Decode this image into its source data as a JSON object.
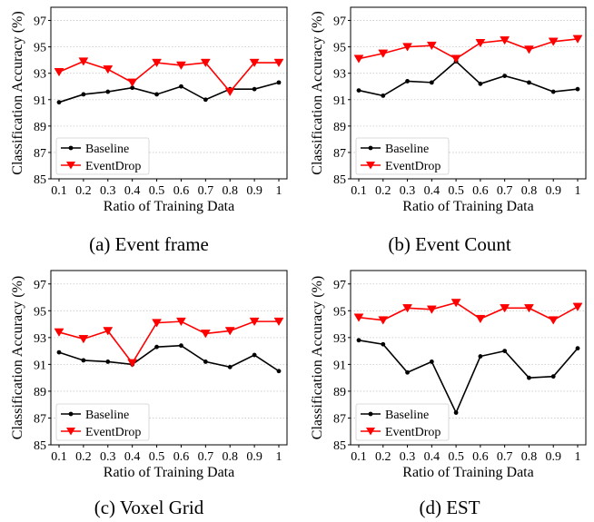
{
  "chart_data": [
    {
      "type": "line",
      "caption": "(a) Event frame",
      "xlabel": "Ratio of Training Data",
      "ylabel": "Classification Accuracy (%)",
      "categories": [
        "0.1",
        "0.2",
        "0.3",
        "0.4",
        "0.5",
        "0.6",
        "0.7",
        "0.8",
        "0.9",
        "1"
      ],
      "yticks": [
        85,
        87,
        89,
        91,
        93,
        95,
        97
      ],
      "ylim": [
        85,
        98
      ],
      "grid": "horizontal dotted",
      "legend_position": "lower-left",
      "series": [
        {
          "name": "Baseline",
          "color": "#000000",
          "marker": "dot",
          "values": [
            90.8,
            91.4,
            91.6,
            91.9,
            91.4,
            92.0,
            91.0,
            91.8,
            91.8,
            92.3
          ]
        },
        {
          "name": "EventDrop",
          "color": "#ff0000",
          "marker": "triangle-down",
          "values": [
            93.1,
            93.9,
            93.3,
            92.3,
            93.8,
            93.6,
            93.8,
            91.6,
            93.8,
            93.8
          ]
        }
      ]
    },
    {
      "type": "line",
      "caption": "(b) Event Count",
      "xlabel": "Ratio of Training Data",
      "ylabel": "Classification Accuracy (%)",
      "categories": [
        "0.1",
        "0.2",
        "0.3",
        "0.4",
        "0.5",
        "0.6",
        "0.7",
        "0.8",
        "0.9",
        "1"
      ],
      "yticks": [
        85,
        87,
        89,
        91,
        93,
        95,
        97
      ],
      "ylim": [
        85,
        98
      ],
      "grid": "horizontal dotted",
      "legend_position": "lower-left",
      "series": [
        {
          "name": "Baseline",
          "color": "#000000",
          "marker": "dot",
          "values": [
            91.7,
            91.3,
            92.4,
            92.3,
            93.9,
            92.2,
            92.8,
            92.3,
            91.6,
            91.8
          ]
        },
        {
          "name": "EventDrop",
          "color": "#ff0000",
          "marker": "triangle-down",
          "values": [
            94.1,
            94.5,
            95.0,
            95.1,
            94.1,
            95.3,
            95.5,
            94.8,
            95.4,
            95.6
          ]
        }
      ]
    },
    {
      "type": "line",
      "caption": "(c) Voxel Grid",
      "xlabel": "Ratio of Training Data",
      "ylabel": "Classification Accuracy (%)",
      "categories": [
        "0.1",
        "0.2",
        "0.3",
        "0.4",
        "0.5",
        "0.6",
        "0.7",
        "0.8",
        "0.9",
        "1"
      ],
      "yticks": [
        85,
        87,
        89,
        91,
        93,
        95,
        97
      ],
      "ylim": [
        85,
        98
      ],
      "grid": "horizontal dotted",
      "legend_position": "lower-left",
      "series": [
        {
          "name": "Baseline",
          "color": "#000000",
          "marker": "dot",
          "values": [
            91.9,
            91.3,
            91.2,
            91.0,
            92.3,
            92.4,
            91.2,
            90.8,
            91.7,
            90.5
          ]
        },
        {
          "name": "EventDrop",
          "color": "#ff0000",
          "marker": "triangle-down",
          "values": [
            93.4,
            92.9,
            93.5,
            91.1,
            94.1,
            94.2,
            93.3,
            93.5,
            94.2,
            94.2
          ]
        }
      ]
    },
    {
      "type": "line",
      "caption": "(d) EST",
      "xlabel": "Ratio of Training Data",
      "ylabel": "Classification Accuracy (%)",
      "categories": [
        "0.1",
        "0.2",
        "0.3",
        "0.4",
        "0.5",
        "0.6",
        "0.7",
        "0.8",
        "0.9",
        "1"
      ],
      "yticks": [
        85,
        87,
        89,
        91,
        93,
        95,
        97
      ],
      "ylim": [
        85,
        98
      ],
      "grid": "horizontal dotted",
      "legend_position": "lower-left",
      "series": [
        {
          "name": "Baseline",
          "color": "#000000",
          "marker": "dot",
          "values": [
            92.8,
            92.5,
            90.4,
            91.2,
            87.4,
            91.6,
            92.0,
            90.0,
            90.1,
            92.2
          ]
        },
        {
          "name": "EventDrop",
          "color": "#ff0000",
          "marker": "triangle-down",
          "values": [
            94.5,
            94.3,
            95.2,
            95.1,
            95.6,
            94.4,
            95.2,
            95.2,
            94.3,
            95.3
          ]
        }
      ]
    }
  ]
}
